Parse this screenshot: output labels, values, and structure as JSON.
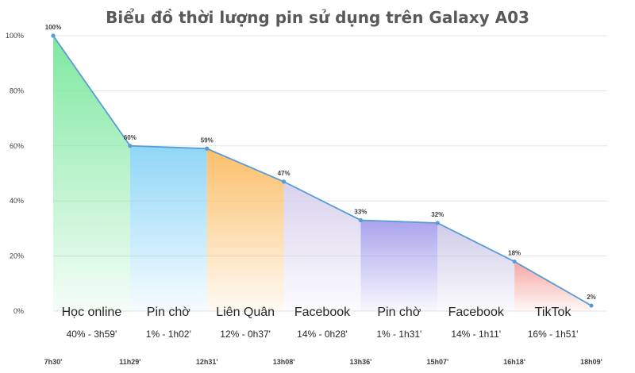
{
  "chart_data": {
    "type": "area",
    "title": "Biểu đồ thời lượng pin sử dụng trên Galaxy A03",
    "xlabel": "",
    "ylabel": "",
    "ylim": [
      0,
      100
    ],
    "yticks": [
      "0%",
      "20%",
      "40%",
      "60%",
      "80%",
      "100%"
    ],
    "grid": true,
    "x": [
      "7h30'",
      "11h29'",
      "12h31'",
      "13h08'",
      "13h36'",
      "15h07'",
      "16h18'",
      "18h09'"
    ],
    "values": [
      100,
      60,
      59,
      47,
      33,
      32,
      18,
      2
    ],
    "data_labels": [
      "100%",
      "60%",
      "59%",
      "47%",
      "33%",
      "32%",
      "18%",
      "2%"
    ],
    "line_color": "#5b9bd5",
    "segments": [
      {
        "label": "Học online",
        "detail": "40% - 3h59'",
        "color": "#7ee8a0"
      },
      {
        "label": "Pin chờ",
        "detail": "1% - 1h02'",
        "color": "#8fd6f7"
      },
      {
        "label": "Liên Quân",
        "detail": "12% - 0h37'",
        "color": "#fbbf6a"
      },
      {
        "label": "Facebook",
        "detail": "14% - 0h28'",
        "color": "#d9d2ee"
      },
      {
        "label": "Pin chờ",
        "detail": "1% - 1h31'",
        "color": "#a9a3ec"
      },
      {
        "label": "Facebook",
        "detail": "14% - 1h11'",
        "color": "#cfcbe8"
      },
      {
        "label": "TikTok",
        "detail": "16% - 1h51'",
        "color": "#f6a6a0"
      }
    ]
  }
}
